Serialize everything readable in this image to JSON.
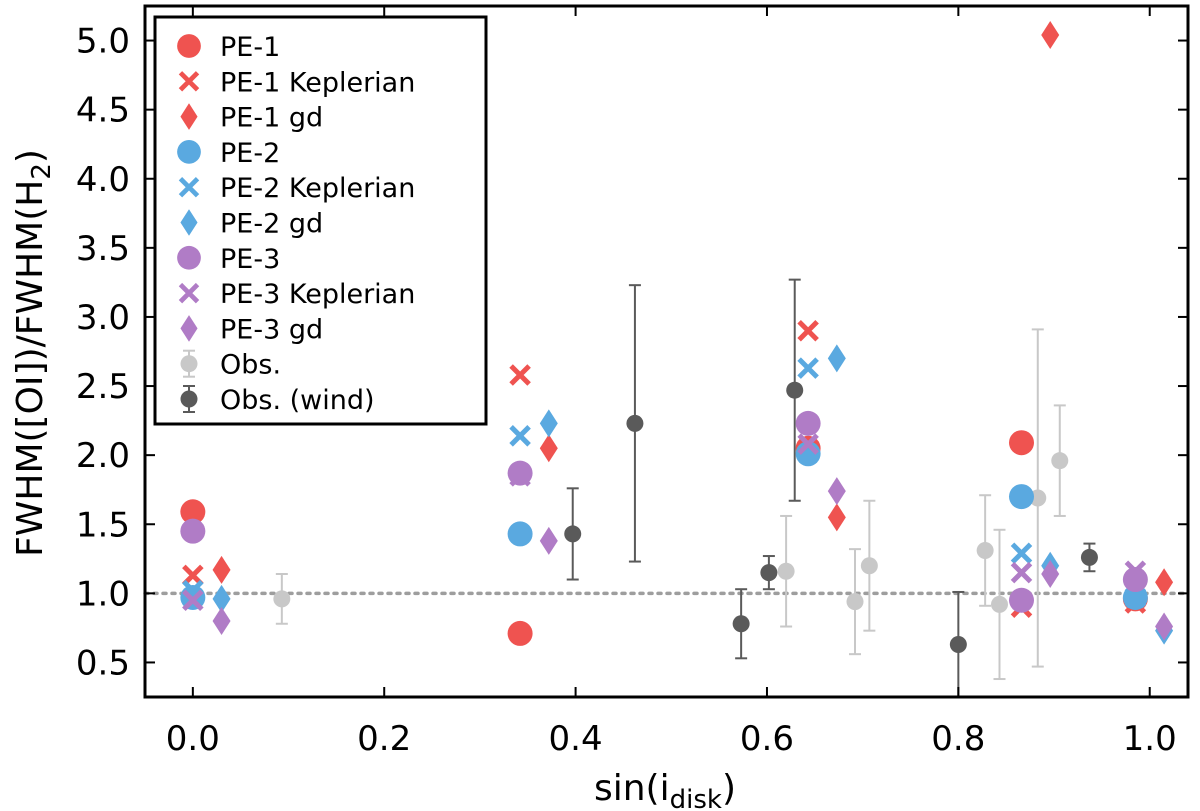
{
  "chart_data": {
    "type": "scatter",
    "xlabel": "sin(i",
    "xlabel_sub": "disk",
    "xlabel_close": ")",
    "ylabel": "FWHM([OI])/FWHM(H",
    "ylabel_sub": "2",
    "ylabel_close": ")",
    "xlim": [
      -0.05,
      1.04
    ],
    "ylim": [
      0.25,
      5.25
    ],
    "xticks": [
      "0.0",
      "0.2",
      "0.4",
      "0.6",
      "0.8",
      "1.0"
    ],
    "xtick_values": [
      0.0,
      0.2,
      0.4,
      0.6,
      0.8,
      1.0
    ],
    "yticks": [
      "0.5",
      "1.0",
      "1.5",
      "2.0",
      "2.5",
      "3.0",
      "3.5",
      "4.0",
      "4.5",
      "5.0"
    ],
    "ytick_values": [
      0.5,
      1.0,
      1.5,
      2.0,
      2.5,
      3.0,
      3.5,
      4.0,
      4.5,
      5.0
    ],
    "reference_line": 1.0,
    "legend_position": "upper-left",
    "series": [
      {
        "name": "PE-1",
        "color": "#ef5350",
        "marker": "circle",
        "x": [
          0.0,
          0.342,
          0.643,
          0.866,
          0.985
        ],
        "y": [
          1.59,
          0.71,
          2.05,
          2.09,
          0.96
        ]
      },
      {
        "name": "PE-1 Keplerian",
        "color": "#ef5350",
        "marker": "x",
        "x": [
          0.0,
          0.342,
          0.643,
          0.866,
          0.985
        ],
        "y": [
          1.13,
          2.58,
          2.9,
          0.9,
          0.93
        ]
      },
      {
        "name": "PE-1 gd",
        "color": "#ef5350",
        "marker": "diamond",
        "x": [
          0.03,
          0.372,
          0.673,
          0.896,
          1.015
        ],
        "y": [
          1.17,
          2.05,
          1.55,
          5.04,
          1.08
        ]
      },
      {
        "name": "PE-2",
        "color": "#5aa9e0",
        "marker": "circle",
        "x": [
          0.0,
          0.342,
          0.643,
          0.866,
          0.985
        ],
        "y": [
          0.97,
          1.43,
          2.01,
          1.7,
          0.97
        ]
      },
      {
        "name": "PE-2 Keplerian",
        "color": "#5aa9e0",
        "marker": "x",
        "x": [
          0.0,
          0.342,
          0.643,
          0.866,
          0.985
        ],
        "y": [
          1.02,
          2.14,
          2.63,
          1.29,
          0.97
        ]
      },
      {
        "name": "PE-2 gd",
        "color": "#5aa9e0",
        "marker": "diamond",
        "x": [
          0.03,
          0.372,
          0.673,
          0.896,
          1.015
        ],
        "y": [
          0.96,
          2.23,
          2.7,
          1.2,
          0.73
        ]
      },
      {
        "name": "PE-3",
        "color": "#b07cc6",
        "marker": "circle",
        "x": [
          0.0,
          0.342,
          0.643,
          0.866,
          0.985
        ],
        "y": [
          1.45,
          1.87,
          2.23,
          0.95,
          1.1
        ]
      },
      {
        "name": "PE-3 Keplerian",
        "color": "#b07cc6",
        "marker": "x",
        "x": [
          0.0,
          0.342,
          0.643,
          0.866,
          0.985
        ],
        "y": [
          0.95,
          1.85,
          2.08,
          1.15,
          1.16
        ]
      },
      {
        "name": "PE-3 gd",
        "color": "#b07cc6",
        "marker": "diamond",
        "x": [
          0.03,
          0.372,
          0.673,
          0.896,
          1.015
        ],
        "y": [
          0.8,
          1.38,
          1.74,
          1.14,
          0.76
        ]
      },
      {
        "name": "Obs.",
        "color": "#c8c8c8",
        "marker": "errorbar",
        "x": [
          0.093,
          0.62,
          0.692,
          0.707,
          0.828,
          0.843,
          0.883,
          0.906
        ],
        "y": [
          0.96,
          1.16,
          0.94,
          1.2,
          1.31,
          0.92,
          1.69,
          1.96
        ],
        "yerr_low": [
          0.18,
          0.4,
          0.38,
          0.47,
          0.4,
          0.54,
          1.22,
          0.4
        ],
        "yerr_high": [
          0.18,
          0.4,
          0.38,
          0.47,
          0.4,
          0.54,
          1.22,
          0.4
        ]
      },
      {
        "name": "Obs. (wind)",
        "color": "#5a5a5a",
        "marker": "errorbar",
        "x": [
          0.397,
          0.462,
          0.573,
          0.602,
          0.629,
          0.8,
          0.937
        ],
        "y": [
          1.43,
          2.23,
          0.78,
          1.15,
          2.47,
          0.63,
          1.26
        ],
        "yerr_low": [
          0.33,
          1.0,
          0.25,
          0.12,
          0.8,
          0.38,
          0.1
        ],
        "yerr_high": [
          0.33,
          1.0,
          0.25,
          0.12,
          0.8,
          0.38,
          0.1
        ]
      }
    ]
  }
}
